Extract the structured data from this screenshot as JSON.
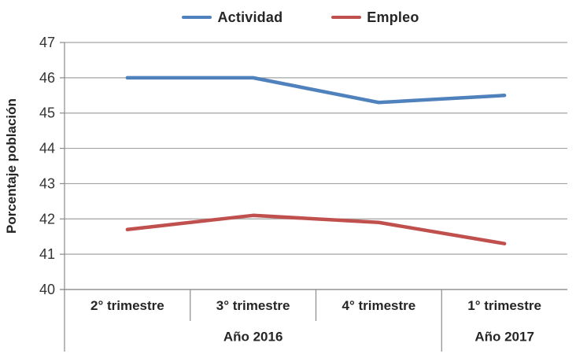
{
  "chart_data": {
    "type": "line",
    "title": "",
    "categories": [
      "2° trimestre",
      "3° trimestre",
      "4° trimestre",
      "1° trimestre"
    ],
    "category_groups": [
      {
        "label": "Año 2016",
        "span": [
          0,
          2
        ]
      },
      {
        "label": "Año 2017",
        "span": [
          3,
          3
        ]
      }
    ],
    "series": [
      {
        "name": "Actividad",
        "color": "#4F81BD",
        "values": [
          46.0,
          46.0,
          45.3,
          45.5
        ]
      },
      {
        "name": "Empleo",
        "color": "#C0504D",
        "values": [
          41.7,
          42.1,
          41.9,
          41.3
        ]
      }
    ],
    "xlabel": "",
    "ylabel": "Porcentaje población",
    "ylim": [
      40,
      47
    ],
    "yticks": [
      40,
      41,
      42,
      43,
      44,
      45,
      46,
      47
    ],
    "grid": true,
    "legend_position": "top",
    "gridline_color": "#a3a3a3",
    "axis_color": "#8a8a8a",
    "text_color": "#262626"
  }
}
